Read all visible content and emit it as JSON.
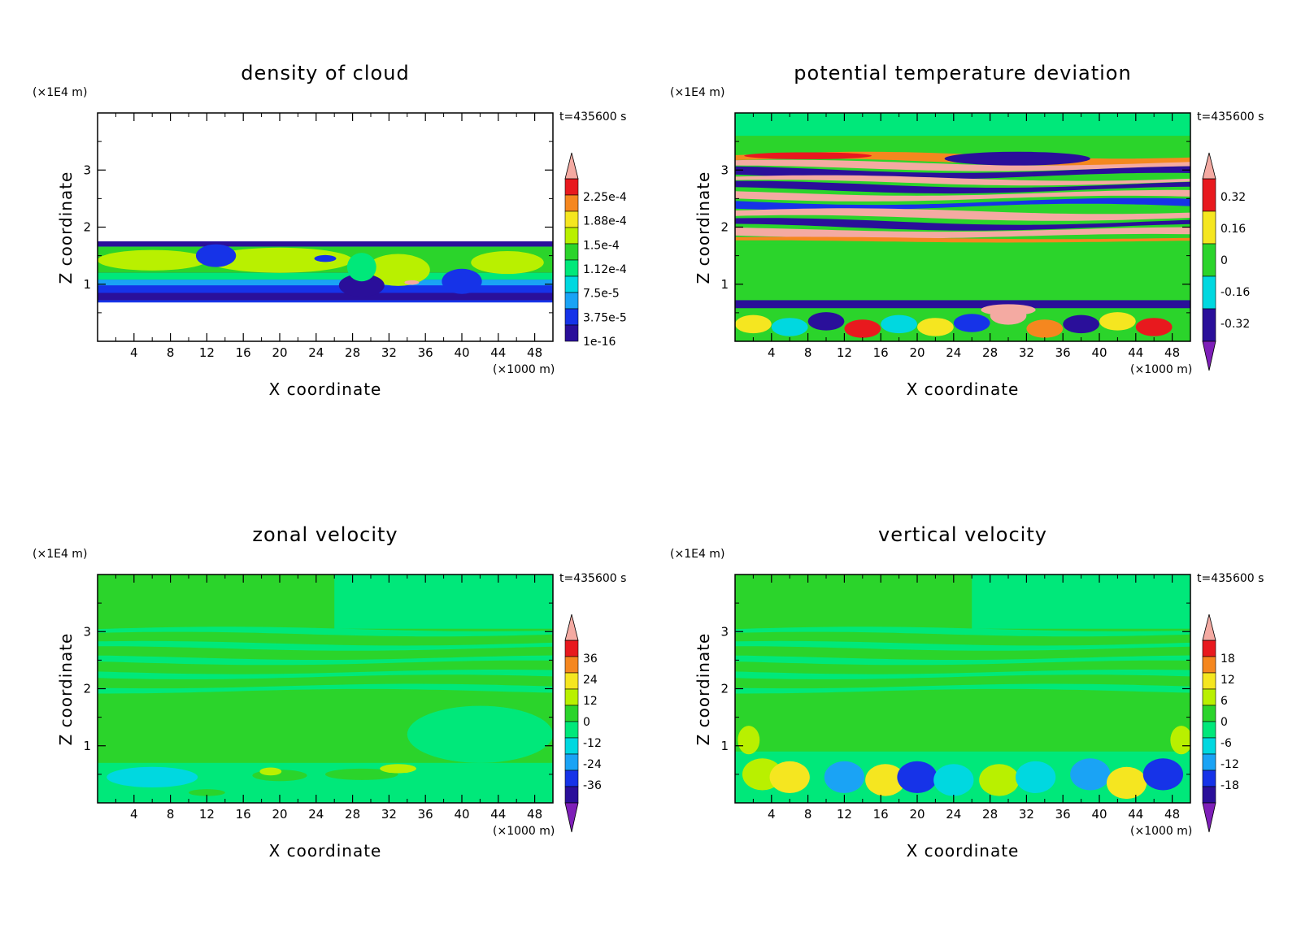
{
  "chart_data": [
    {
      "type": "heatmap",
      "title": "density of cloud",
      "xlabel": "X coordinate",
      "ylabel": "Z coordinate",
      "x_unit": "(×1000 m)",
      "y_unit": "(×1E4 m)",
      "time_label": "t=435600 s",
      "x_ticks": [
        "4",
        "8",
        "12",
        "16",
        "20",
        "24",
        "28",
        "32",
        "36",
        "40",
        "44",
        "48"
      ],
      "y_ticks": [
        "1",
        "2",
        "3"
      ],
      "colorbar_labels": [
        "2.25e-4",
        "1.88e-4",
        "1.5e-4",
        "1.12e-4",
        "7.5e-5",
        "3.75e-5",
        "1e-16"
      ],
      "field": "cloud"
    },
    {
      "type": "heatmap",
      "title": "potential temperature deviation",
      "xlabel": "X coordinate",
      "ylabel": "Z coordinate",
      "x_unit": "(×1000 m)",
      "y_unit": "(×1E4 m)",
      "time_label": "t=435600 s",
      "x_ticks": [
        "4",
        "8",
        "12",
        "16",
        "20",
        "24",
        "28",
        "32",
        "36",
        "40",
        "44",
        "48"
      ],
      "y_ticks": [
        "1",
        "2",
        "3"
      ],
      "colorbar_labels": [
        "0.32",
        "0.16",
        "0",
        "-0.16",
        "-0.32"
      ],
      "field": "theta"
    },
    {
      "type": "heatmap",
      "title": "zonal velocity",
      "xlabel": "X coordinate",
      "ylabel": "Z coordinate",
      "x_unit": "(×1000 m)",
      "y_unit": "(×1E4 m)",
      "time_label": "t=435600 s",
      "x_ticks": [
        "4",
        "8",
        "12",
        "16",
        "20",
        "24",
        "28",
        "32",
        "36",
        "40",
        "44",
        "48"
      ],
      "y_ticks": [
        "1",
        "2",
        "3"
      ],
      "colorbar_labels": [
        "36",
        "24",
        "12",
        "0",
        "-12",
        "-24",
        "-36"
      ],
      "field": "u"
    },
    {
      "type": "heatmap",
      "title": "vertical velocity",
      "xlabel": "X coordinate",
      "ylabel": "Z coordinate",
      "x_unit": "(×1000 m)",
      "y_unit": "(×1E4 m)",
      "time_label": "t=435600 s",
      "x_ticks": [
        "4",
        "8",
        "12",
        "16",
        "20",
        "24",
        "28",
        "32",
        "36",
        "40",
        "44",
        "48"
      ],
      "y_ticks": [
        "1",
        "2",
        "3"
      ],
      "colorbar_labels": [
        "18",
        "12",
        "6",
        "0",
        "-6",
        "-12",
        "-18"
      ],
      "field": "w"
    }
  ],
  "colors": {
    "pink": "#f4aaa2",
    "red": "#e8191e",
    "orange": "#f5871f",
    "yellow": "#f5e620",
    "ygreen": "#b9f000",
    "green": "#2bd42b",
    "mint": "#00e87a",
    "cyan": "#00d8e0",
    "sky": "#1aa3f5",
    "blue": "#1633e8",
    "navy": "#2a0f9a",
    "violet": "#7e1fb8"
  }
}
